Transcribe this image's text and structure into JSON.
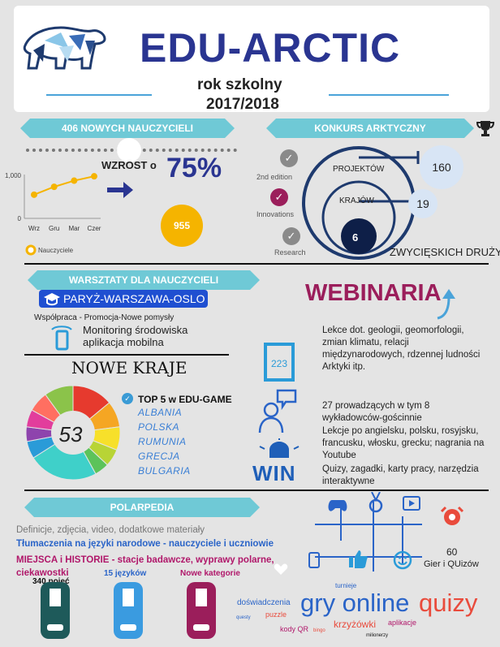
{
  "header": {
    "title": "EDU-ARCTIC",
    "subtitle1": "rok szkolny",
    "subtitle2": "2017/2018"
  },
  "teachers": {
    "ribbon": "406 NOWYCH NAUCZYCIELI",
    "growth_label": "WZROST o",
    "growth_value": "75%",
    "coin_value": "955",
    "chart": {
      "type": "line",
      "categories": [
        "Wrz",
        "Gru",
        "Mar",
        "Czer"
      ],
      "values": [
        540,
        720,
        860,
        960
      ],
      "ytick_labels": [
        "1,000",
        "0"
      ],
      "ylim": [
        0,
        1000
      ],
      "legend": "Nauczyciele",
      "color": "#f5b400"
    }
  },
  "contest": {
    "ribbon": "KONKURS ARKTYCZNY",
    "editions": [
      "2nd edition",
      "Innovations",
      "Research"
    ],
    "projects_label": "PROJEKTÓW",
    "projects_value": "160",
    "countries_label": "KRAJÓW",
    "countries_value": "19",
    "winners_value": "6",
    "winners_label": "ZWYCIĘSKICH DRUŻYN"
  },
  "workshops": {
    "ribbon": "WARSZTATY DLA NAUCZYCIELI",
    "route": "PARYŻ-WARSZAWA-OSLO",
    "cooperation": "Współpraca - Promocja-Nowe pomysły",
    "monitoring1": "Monitoring środowiska",
    "monitoring2": "aplikacja mobilna"
  },
  "webinars": {
    "title": "WEBINARIA",
    "calendar_number": "223",
    "lectures": "Lekce dot. geologii, geomorfologii, zmian klimatu, relacji międzynarodowych, rdzennej ludności Arktyki itp.",
    "presenters": "27 prowadzących w tym 8 wykładowców-gościnnie",
    "languages": "Lekcje po angielsku, polsku, rosyjsku, francusku, włosku, grecku; nagrania na Youtube",
    "materials": "Quizy, zagadki, karty pracy, narzędzia interaktywne",
    "win_label": "WIN"
  },
  "new_countries": {
    "title": "NOWE KRAJE",
    "count": "53",
    "top5_label": "TOP 5 w EDU-GAME",
    "top5": [
      "ALBANIA",
      "POLSKA",
      "RUMUNIA",
      "GRECJA",
      "BULGARIA"
    ],
    "pie_colors": [
      "#e63a2e",
      "#f5a623",
      "#f7e02a",
      "#b8d435",
      "#5cc35a",
      "#3fd0c9",
      "#2a9bd8",
      "#8e44ad",
      "#e23d9c",
      "#ff6f61",
      "#8bc34a"
    ]
  },
  "polarpedia": {
    "ribbon": "POLARPEDIA",
    "line1": "Definicje, zdjęcia, video, dodatkowe materiały",
    "line2": "Tłumaczenia na języki narodowe - nauczyciele i uczniowie",
    "line3": "MIEJSCA i HISTORIE - stacje badawcze, wyprawy polarne, ciekawostki",
    "stat1": "340 pojęć",
    "stat2": "15 języków",
    "stat3": "Nowe kategorie"
  },
  "games": {
    "count": "60",
    "label": "Gier i QUizów",
    "words": [
      "turnieje",
      "doświadczenia",
      "gry online",
      "quizy",
      "questy",
      "puzzle",
      "krzyżówki",
      "aplikacje",
      "kody QR",
      "bingo",
      "milionerzy"
    ],
    "colors": {
      "primary": "#2a64c8",
      "accent": "#e94b3c",
      "magenta": "#b0176a"
    }
  }
}
